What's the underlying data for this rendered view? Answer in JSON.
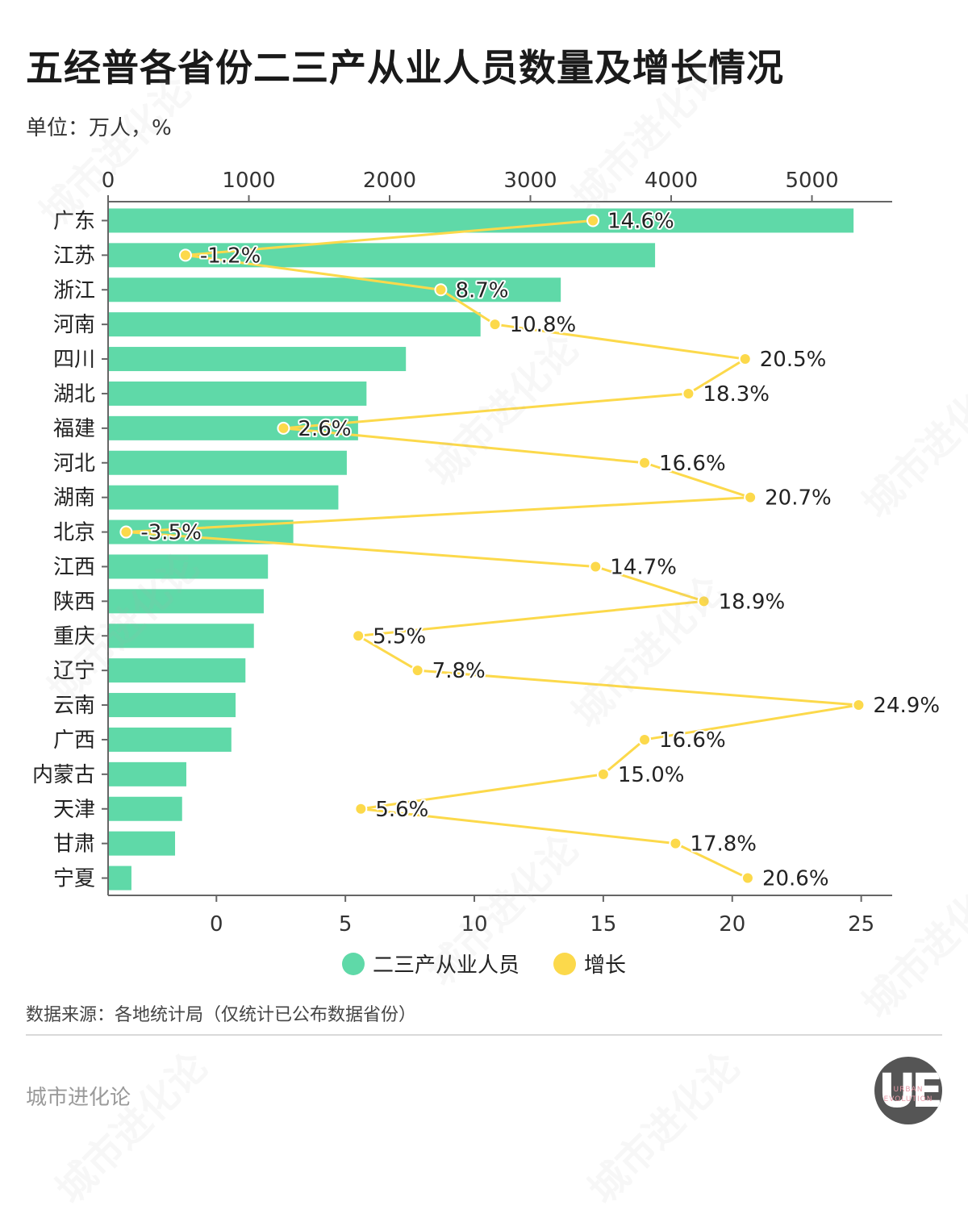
{
  "title": "五经普各省份二三产从业人员数量及增长情况",
  "unit_label": "单位：万人，%",
  "chart_data": {
    "type": "bar",
    "categories": [
      "广东",
      "江苏",
      "浙江",
      "河南",
      "四川",
      "湖北",
      "福建",
      "河北",
      "湖南",
      "北京",
      "江西",
      "陕西",
      "重庆",
      "辽宁",
      "云南",
      "广西",
      "内蒙古",
      "天津",
      "甘肃",
      "宁夏"
    ],
    "series": [
      {
        "name": "二三产从业人员",
        "type": "bar",
        "axis": "top",
        "color": "#5fd9a8",
        "values": [
          5290,
          3880,
          3210,
          2640,
          2110,
          1830,
          1770,
          1690,
          1630,
          1310,
          1130,
          1100,
          1030,
          970,
          900,
          870,
          550,
          520,
          470,
          160
        ]
      },
      {
        "name": "增长",
        "type": "line",
        "axis": "bottom",
        "color": "#fcd94b",
        "values": [
          14.6,
          -1.2,
          8.7,
          10.8,
          20.5,
          18.3,
          2.6,
          16.6,
          20.7,
          -3.5,
          14.7,
          18.9,
          5.5,
          7.8,
          24.9,
          16.6,
          15.0,
          5.6,
          17.8,
          20.6
        ],
        "labels": [
          "14.6%",
          "-1.2%",
          "8.7%",
          "10.8%",
          "20.5%",
          "18.3%",
          "2.6%",
          "16.6%",
          "20.7%",
          "-3.5%",
          "14.7%",
          "18.9%",
          "5.5%",
          "7.8%",
          "24.9%",
          "16.6%",
          "15.0%",
          "5.6%",
          "17.8%",
          "20.6%"
        ]
      }
    ],
    "top_axis": {
      "range": [
        0,
        5570
      ],
      "ticks": [
        0,
        1000,
        2000,
        3000,
        4000,
        5000
      ]
    },
    "bottom_axis": {
      "range": [
        -4.2,
        26.2
      ],
      "ticks": [
        0,
        5,
        10,
        15,
        20,
        25
      ]
    },
    "legend_position": "bottom"
  },
  "legend": [
    {
      "label": "二三产从业人员",
      "color": "#5fd9a8"
    },
    {
      "label": "增长",
      "color": "#fcd94b"
    }
  ],
  "source": "数据来源：各地统计局（仅统计已公布数据省份）",
  "brand": "城市进化论",
  "logo": {
    "mark": "UE",
    "line1": "URBAN",
    "line2": "EVOLUTION"
  },
  "watermark": "城市进化论"
}
